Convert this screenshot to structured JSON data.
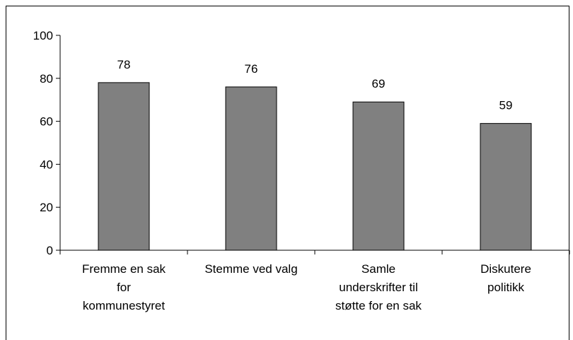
{
  "chart_data": {
    "type": "bar",
    "categories": [
      "Fremme en sak\nfor\nkommunestyret",
      "Stemme ved valg",
      "Samle\nunderskrifter til\nstøtte for en sak",
      "Diskutere\npolitikk"
    ],
    "values": [
      78,
      76,
      69,
      59
    ],
    "color": "#808080",
    "ylim": [
      0,
      100
    ],
    "yticks": [
      0,
      20,
      40,
      60,
      80,
      100
    ],
    "grid": false
  }
}
